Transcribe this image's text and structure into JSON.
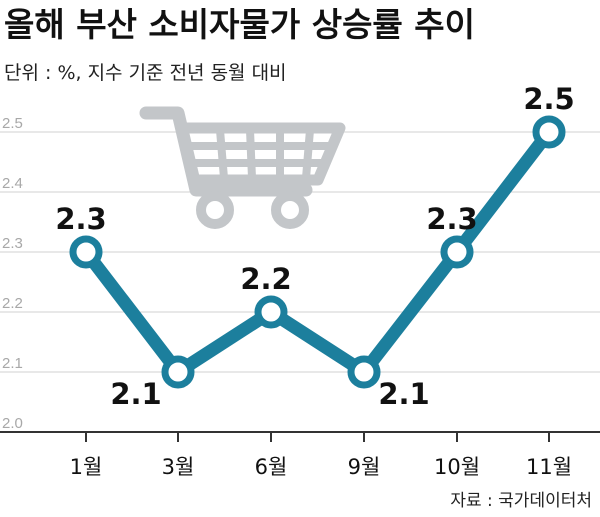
{
  "chart_data": {
    "type": "line",
    "title": "올해 부산 소비자물가 상승률 추이",
    "unit_note": "단위 : %, 지수 기준 전년 동월 대비",
    "source": "자료 : 국가데이터처",
    "categories": [
      "1월",
      "3월",
      "6월",
      "9월",
      "10월",
      "11월"
    ],
    "series": [
      {
        "values": [
          2.3,
          2.1,
          2.2,
          2.1,
          2.3,
          2.5
        ]
      }
    ],
    "data_labels": [
      "2.3",
      "2.1",
      "2.2",
      "2.1",
      "2.3",
      "2.5"
    ],
    "yticks": [
      "2.0",
      "2.1",
      "2.2",
      "2.3",
      "2.4",
      "2.5"
    ],
    "ylim": [
      2.0,
      2.5
    ],
    "grid": true,
    "legend": "none",
    "icon": "shopping-cart-icon",
    "colors": {
      "line": "#1c7f9d",
      "marker_fill": "#ffffff",
      "grid": "#d2d2d2",
      "icon": "#c3c6c9",
      "axis": "#333333"
    }
  }
}
